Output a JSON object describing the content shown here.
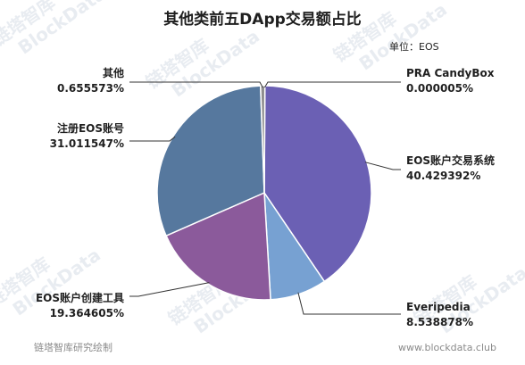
{
  "chart_data": {
    "type": "pie",
    "title": "其他类前五DApp交易额占比",
    "unit_label": "单位：EOS",
    "slices": [
      {
        "name": "PRA CandyBox",
        "value": 5e-06,
        "value_label": "0.000005%",
        "color": "#c9c0e3"
      },
      {
        "name": "EOS账户交易系统",
        "value": 40.429392,
        "value_label": "40.429392%",
        "color": "#6b60b4"
      },
      {
        "name": "Everipedia",
        "value": 8.538878,
        "value_label": "8.538878%",
        "color": "#77a1d2"
      },
      {
        "name": "EOS账户创建工具",
        "value": 19.364605,
        "value_label": "19.364605%",
        "color": "#8b5a9b"
      },
      {
        "name": "注册EOS账号",
        "value": 31.011547,
        "value_label": "31.011547%",
        "color": "#56789e"
      },
      {
        "name": "其他",
        "value": 0.655573,
        "value_label": "0.655573%",
        "color": "#8e8e8e"
      }
    ]
  },
  "footer": {
    "source": "链塔智库研究绘制",
    "website": "www.blockdata.club"
  },
  "watermark": {
    "brand_cn": "链塔智库",
    "brand_en": "BlockData"
  }
}
